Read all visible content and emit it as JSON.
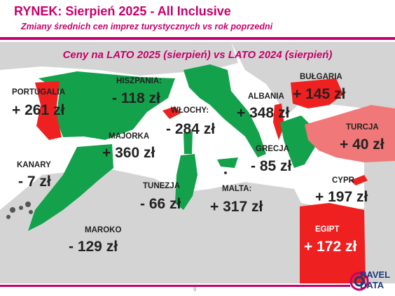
{
  "header": {
    "title": "RYNEK: Sierpień 2025 - All Inclusive",
    "subtitle": "Zmiany średnich cen imprez turystycznych vs rok poprzedni"
  },
  "map_title": "Ceny na LATO 2025 (sierpień) vs  LATO 2024 (sierpień)",
  "colors": {
    "accent": "#c8006a",
    "increase": "#ee2020",
    "decrease": "#13a24b",
    "small_increase": "#f07878",
    "sea": "#ffffff",
    "land": "#d4d4d4"
  },
  "countries": [
    {
      "id": "portugalia",
      "label": "PORTUGALIA",
      "value": "+ 261 zł"
    },
    {
      "id": "hiszpania",
      "label": "HISZPANIA:",
      "value": "- 118 zł"
    },
    {
      "id": "wlochy",
      "label": "WŁOCHY:",
      "value": "- 284 zł"
    },
    {
      "id": "albania",
      "label": "ALBANIA",
      "value": "+ 348 zł"
    },
    {
      "id": "bulgaria",
      "label": "BUŁGARIA",
      "value": "+ 145 zł"
    },
    {
      "id": "turcja",
      "label": "TURCJA",
      "value": "+ 40 zł"
    },
    {
      "id": "majorka",
      "label": "MAJORKA",
      "value": "+ 360 zł"
    },
    {
      "id": "kanary",
      "label": "KANARY",
      "value": "- 7 zł"
    },
    {
      "id": "grecja",
      "label": "GRECJA",
      "value": "- 85 zł"
    },
    {
      "id": "tunezja",
      "label": "TUNEZJA",
      "value": "- 66 zł"
    },
    {
      "id": "malta",
      "label": "MALTA:",
      "value": "+ 317 zł"
    },
    {
      "id": "cypr",
      "label": "CYPR",
      "value": "+ 197 zł"
    },
    {
      "id": "maroko",
      "label": "MAROKO",
      "value": "- 129 zł"
    },
    {
      "id": "egipt",
      "label": "EGIPT",
      "value": "+ 172 zł"
    }
  ],
  "footer": {
    "page": "8",
    "logo_line1": "RAVEL",
    "logo_line2": "DATA"
  }
}
